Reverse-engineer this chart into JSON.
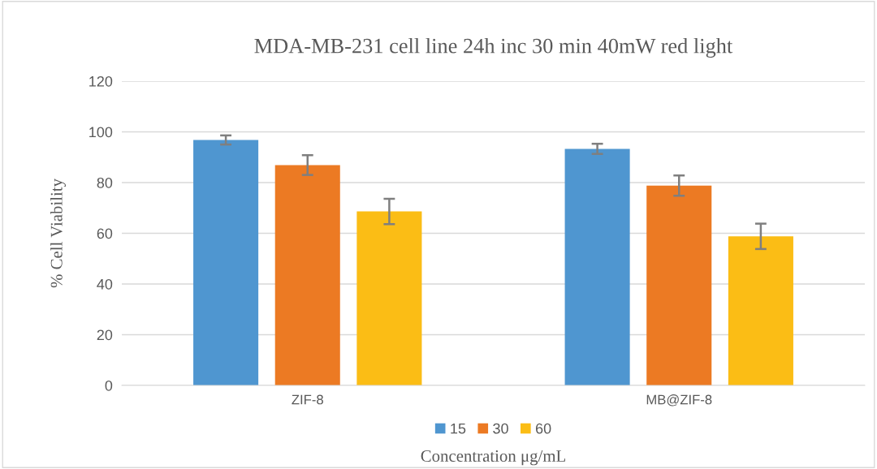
{
  "chart_data": {
    "type": "bar",
    "title": "MDA-MB-231 cell line 24h inc 30 min 40mW red light",
    "xlabel": "Concentration μg/mL",
    "ylabel": "% Cell Viability",
    "categories": [
      "ZIF-8",
      "MB@ZIF-8"
    ],
    "series": [
      {
        "name": "15",
        "color": "#4f96d0",
        "values": [
          96.8,
          93.3
        ],
        "errors": [
          1.8,
          2
        ]
      },
      {
        "name": "30",
        "color": "#ec7a23",
        "values": [
          86.9,
          78.8
        ],
        "errors": [
          3.9,
          4
        ]
      },
      {
        "name": "60",
        "color": "#fbbd15",
        "values": [
          68.6,
          58.8
        ],
        "errors": [
          5,
          5
        ]
      }
    ],
    "ylim": [
      0,
      120
    ],
    "yticks": [
      0,
      20,
      40,
      60,
      80,
      100,
      120
    ],
    "grid": "y",
    "legend": "bottom"
  }
}
